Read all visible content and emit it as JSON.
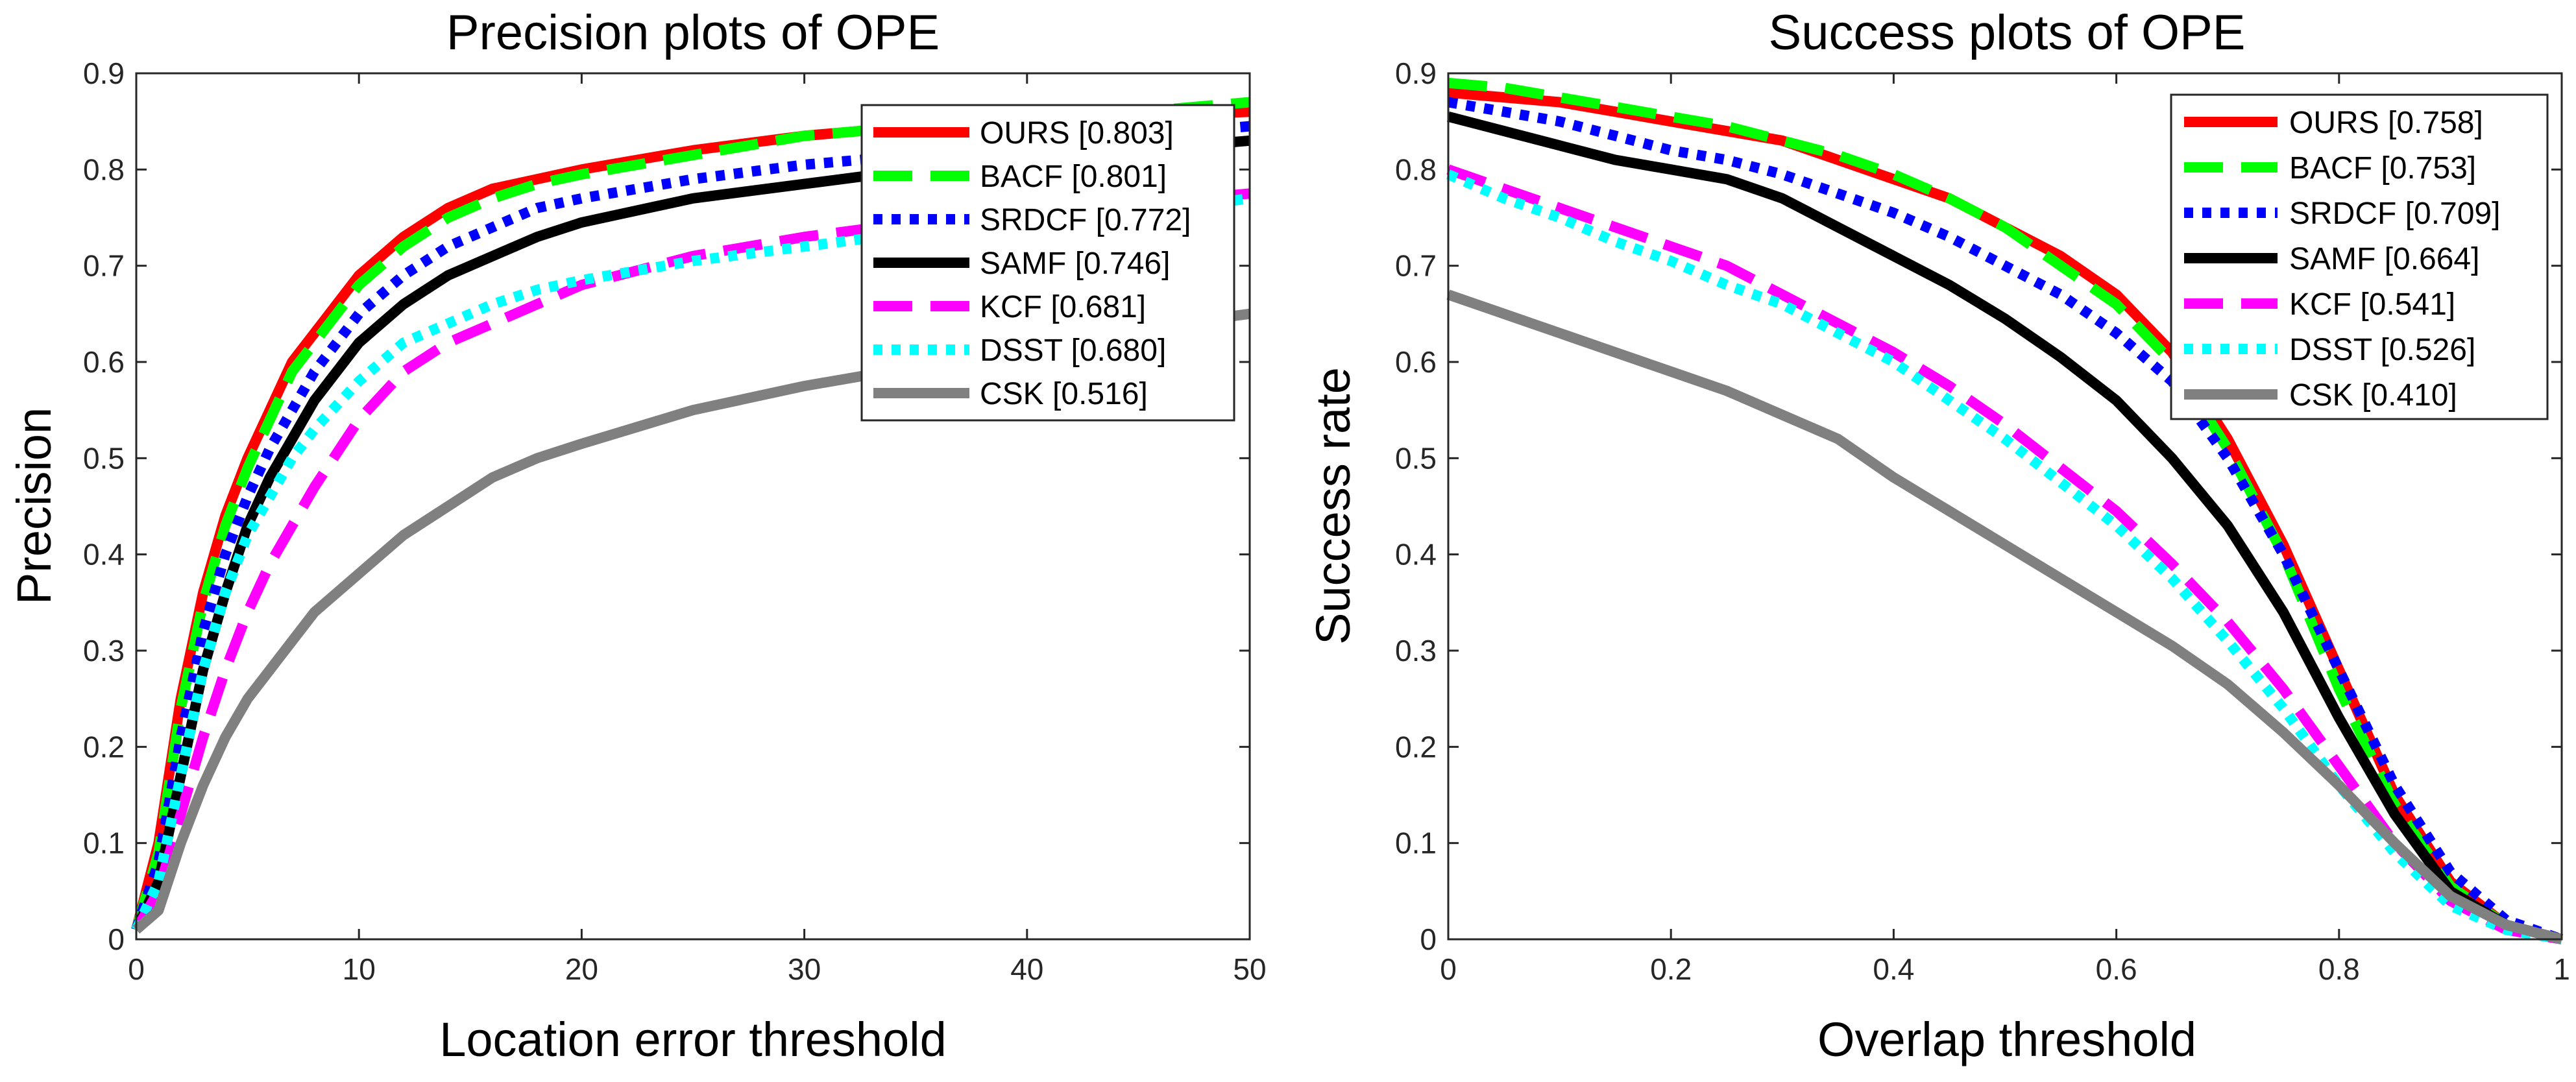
{
  "chart_data": [
    {
      "type": "line",
      "title": "Precision plots of OPE",
      "xlabel": "Location error threshold",
      "ylabel": "Precision",
      "xlim": [
        0,
        50
      ],
      "ylim": [
        0,
        0.9
      ],
      "xticks": [
        0,
        10,
        20,
        30,
        40,
        50
      ],
      "xtick_labels": [
        "0",
        "10",
        "20",
        "30",
        "40",
        "50"
      ],
      "yticks": [
        0,
        0.1,
        0.2,
        0.3,
        0.4,
        0.5,
        0.6,
        0.7,
        0.8,
        0.9
      ],
      "ytick_labels": [
        "0",
        "0.1",
        "0.2",
        "0.3",
        "0.4",
        "0.5",
        "0.6",
        "0.7",
        "0.8",
        "0.9"
      ],
      "legend_position": "top-right",
      "x": [
        0,
        1,
        2,
        3,
        4,
        5,
        6,
        7,
        8,
        10,
        12,
        14,
        16,
        18,
        20,
        25,
        30,
        35,
        40,
        45,
        50
      ],
      "series": [
        {
          "name": "OURS",
          "legend": "OURS [0.803]",
          "color": "#ff0000",
          "dash": "solid",
          "values": [
            0.01,
            0.1,
            0.25,
            0.36,
            0.44,
            0.5,
            0.55,
            0.6,
            0.63,
            0.69,
            0.73,
            0.76,
            0.78,
            0.79,
            0.8,
            0.82,
            0.835,
            0.845,
            0.85,
            0.855,
            0.86
          ]
        },
        {
          "name": "BACF",
          "legend": "BACF [0.801]",
          "color": "#00ff00",
          "dash": "dash",
          "values": [
            0.01,
            0.09,
            0.24,
            0.35,
            0.43,
            0.49,
            0.54,
            0.59,
            0.62,
            0.68,
            0.72,
            0.75,
            0.77,
            0.785,
            0.795,
            0.815,
            0.835,
            0.845,
            0.855,
            0.86,
            0.87
          ]
        },
        {
          "name": "SRDCF",
          "legend": "SRDCF [0.772]",
          "color": "#0000ff",
          "dash": "dot",
          "values": [
            0.01,
            0.08,
            0.21,
            0.32,
            0.4,
            0.46,
            0.51,
            0.55,
            0.59,
            0.65,
            0.69,
            0.72,
            0.74,
            0.76,
            0.77,
            0.79,
            0.805,
            0.815,
            0.825,
            0.835,
            0.845
          ]
        },
        {
          "name": "SAMF",
          "legend": "SAMF [0.746]",
          "color": "#000000",
          "dash": "solid",
          "values": [
            0.01,
            0.06,
            0.17,
            0.28,
            0.36,
            0.43,
            0.48,
            0.52,
            0.56,
            0.62,
            0.66,
            0.69,
            0.71,
            0.73,
            0.745,
            0.77,
            0.785,
            0.8,
            0.81,
            0.82,
            0.83
          ]
        },
        {
          "name": "KCF",
          "legend": "KCF [0.681]",
          "color": "#ff00ff",
          "dash": "dash",
          "values": [
            0.01,
            0.05,
            0.13,
            0.21,
            0.28,
            0.34,
            0.39,
            0.43,
            0.47,
            0.54,
            0.59,
            0.62,
            0.64,
            0.66,
            0.68,
            0.71,
            0.73,
            0.745,
            0.755,
            0.765,
            0.775
          ]
        },
        {
          "name": "DSST",
          "legend": "DSST [0.680]",
          "color": "#00ffff",
          "dash": "dot",
          "values": [
            0.01,
            0.06,
            0.17,
            0.28,
            0.36,
            0.42,
            0.46,
            0.5,
            0.53,
            0.58,
            0.62,
            0.64,
            0.66,
            0.675,
            0.685,
            0.705,
            0.72,
            0.735,
            0.745,
            0.755,
            0.77
          ]
        },
        {
          "name": "CSK",
          "legend": "CSK [0.516]",
          "color": "#808080",
          "dash": "solid",
          "values": [
            0.01,
            0.03,
            0.1,
            0.16,
            0.21,
            0.25,
            0.28,
            0.31,
            0.34,
            0.38,
            0.42,
            0.45,
            0.48,
            0.5,
            0.515,
            0.55,
            0.575,
            0.595,
            0.615,
            0.635,
            0.65
          ]
        }
      ]
    },
    {
      "type": "line",
      "title": "Success plots of OPE",
      "xlabel": "Overlap threshold",
      "ylabel": "Success rate",
      "xlim": [
        0,
        1
      ],
      "ylim": [
        0,
        0.9
      ],
      "xticks": [
        0,
        0.2,
        0.4,
        0.6,
        0.8,
        1
      ],
      "xtick_labels": [
        "0",
        "0.2",
        "0.4",
        "0.6",
        "0.8",
        "1"
      ],
      "yticks": [
        0,
        0.1,
        0.2,
        0.3,
        0.4,
        0.5,
        0.6,
        0.7,
        0.8,
        0.9
      ],
      "ytick_labels": [
        "0",
        "0.1",
        "0.2",
        "0.3",
        "0.4",
        "0.5",
        "0.6",
        "0.7",
        "0.8",
        "0.9"
      ],
      "legend_position": "top-right",
      "x": [
        0,
        0.05,
        0.1,
        0.15,
        0.2,
        0.25,
        0.3,
        0.35,
        0.4,
        0.45,
        0.5,
        0.55,
        0.6,
        0.65,
        0.7,
        0.75,
        0.8,
        0.85,
        0.9,
        0.95,
        1
      ],
      "series": [
        {
          "name": "OURS",
          "legend": "OURS [0.758]",
          "color": "#ff0000",
          "dash": "solid",
          "values": [
            0.88,
            0.875,
            0.87,
            0.86,
            0.85,
            0.84,
            0.83,
            0.81,
            0.79,
            0.77,
            0.74,
            0.71,
            0.67,
            0.61,
            0.52,
            0.41,
            0.28,
            0.15,
            0.06,
            0.015,
            0.0
          ]
        },
        {
          "name": "BACF",
          "legend": "BACF [0.753]",
          "color": "#00ff00",
          "dash": "dash",
          "values": [
            0.89,
            0.885,
            0.875,
            0.865,
            0.855,
            0.845,
            0.83,
            0.815,
            0.795,
            0.77,
            0.74,
            0.7,
            0.66,
            0.6,
            0.51,
            0.4,
            0.26,
            0.14,
            0.055,
            0.015,
            0.0
          ]
        },
        {
          "name": "SRDCF",
          "legend": "SRDCF [0.709]",
          "color": "#0000ff",
          "dash": "dot",
          "values": [
            0.87,
            0.86,
            0.85,
            0.835,
            0.82,
            0.81,
            0.795,
            0.775,
            0.755,
            0.73,
            0.7,
            0.67,
            0.63,
            0.58,
            0.5,
            0.4,
            0.28,
            0.16,
            0.07,
            0.02,
            0.0
          ]
        },
        {
          "name": "SAMF",
          "legend": "SAMF [0.664]",
          "color": "#000000",
          "dash": "solid",
          "values": [
            0.855,
            0.84,
            0.825,
            0.81,
            0.8,
            0.79,
            0.77,
            0.74,
            0.71,
            0.68,
            0.645,
            0.605,
            0.56,
            0.5,
            0.43,
            0.34,
            0.23,
            0.13,
            0.05,
            0.015,
            0.0
          ]
        },
        {
          "name": "KCF",
          "legend": "KCF [0.541]",
          "color": "#ff00ff",
          "dash": "dash",
          "values": [
            0.8,
            0.78,
            0.76,
            0.74,
            0.72,
            0.7,
            0.67,
            0.64,
            0.61,
            0.575,
            0.535,
            0.49,
            0.445,
            0.39,
            0.33,
            0.26,
            0.18,
            0.1,
            0.04,
            0.01,
            0.0
          ]
        },
        {
          "name": "DSST",
          "legend": "DSST [0.526]",
          "color": "#00ffff",
          "dash": "dot",
          "values": [
            0.795,
            0.77,
            0.75,
            0.725,
            0.705,
            0.68,
            0.66,
            0.63,
            0.6,
            0.56,
            0.52,
            0.475,
            0.43,
            0.375,
            0.31,
            0.24,
            0.16,
            0.09,
            0.035,
            0.01,
            0.0
          ]
        },
        {
          "name": "CSK",
          "legend": "CSK [0.410]",
          "color": "#808080",
          "dash": "solid",
          "values": [
            0.67,
            0.65,
            0.63,
            0.61,
            0.59,
            0.57,
            0.545,
            0.52,
            0.48,
            0.445,
            0.41,
            0.375,
            0.34,
            0.305,
            0.265,
            0.215,
            0.16,
            0.1,
            0.045,
            0.015,
            0.0
          ]
        }
      ]
    }
  ]
}
